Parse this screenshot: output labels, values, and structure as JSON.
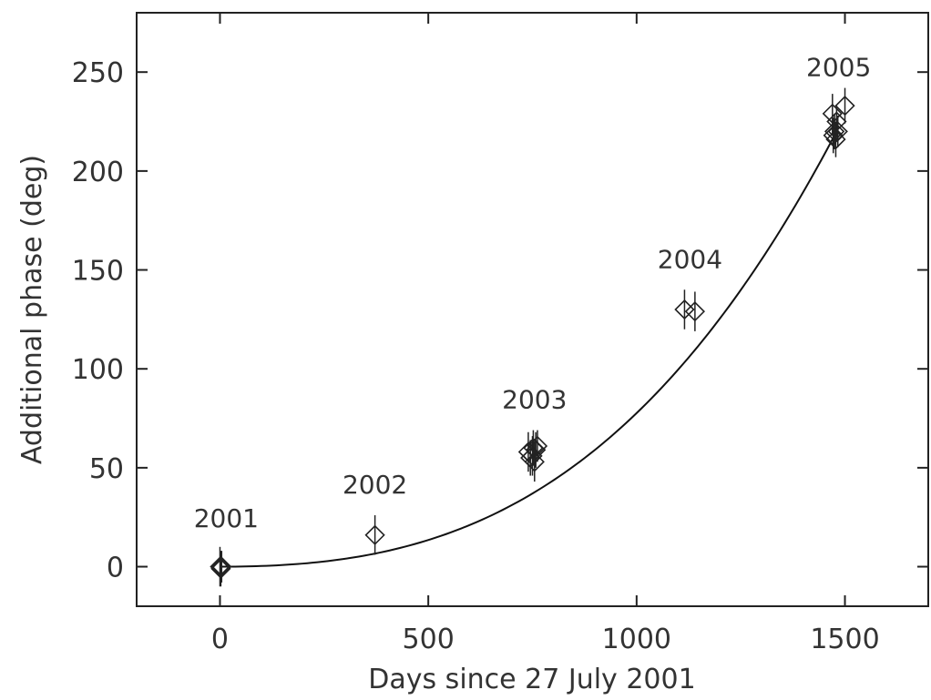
{
  "chart_data": {
    "type": "scatter",
    "title": "",
    "xlabel": "Days since 27 July 2001",
    "ylabel": "Additional phase (deg)",
    "xlim": [
      -200,
      1700
    ],
    "ylim": [
      -20,
      280
    ],
    "xticks": [
      0,
      500,
      1000,
      1500
    ],
    "yticks": [
      0,
      50,
      100,
      150,
      200,
      250
    ],
    "grid": false,
    "marker": "diamond",
    "series": [
      {
        "points": [
          {
            "x": 0,
            "y": 0,
            "err": 10
          },
          {
            "x": 2,
            "y": -1,
            "err": 9
          },
          {
            "x": 4,
            "y": 0,
            "err": 8
          },
          {
            "x": 372,
            "y": 16,
            "err": 10
          },
          {
            "x": 740,
            "y": 58,
            "err": 10
          },
          {
            "x": 745,
            "y": 55,
            "err": 9
          },
          {
            "x": 750,
            "y": 56,
            "err": 10
          },
          {
            "x": 752,
            "y": 60,
            "err": 9
          },
          {
            "x": 755,
            "y": 53,
            "err": 10
          },
          {
            "x": 758,
            "y": 59,
            "err": 9
          },
          {
            "x": 762,
            "y": 61,
            "err": 8
          },
          {
            "x": 1115,
            "y": 130,
            "err": 10
          },
          {
            "x": 1140,
            "y": 129,
            "err": 10
          },
          {
            "x": 1470,
            "y": 229,
            "err": 10
          },
          {
            "x": 1472,
            "y": 218,
            "err": 9
          },
          {
            "x": 1475,
            "y": 220,
            "err": 9
          },
          {
            "x": 1478,
            "y": 216,
            "err": 9
          },
          {
            "x": 1480,
            "y": 225,
            "err": 8
          },
          {
            "x": 1483,
            "y": 220,
            "err": 8
          },
          {
            "x": 1500,
            "y": 233,
            "err": 9
          }
        ]
      }
    ],
    "fit_curve": {
      "x_start": 0,
      "x_end": 1480,
      "y_end": 220
    },
    "annotations": [
      {
        "text": "2001",
        "x": 15,
        "y": 20
      },
      {
        "text": "2002",
        "x": 372,
        "y": 37
      },
      {
        "text": "2003",
        "x": 755,
        "y": 80
      },
      {
        "text": "2004",
        "x": 1128,
        "y": 151
      },
      {
        "text": "2005",
        "x": 1485,
        "y": 248
      }
    ]
  }
}
